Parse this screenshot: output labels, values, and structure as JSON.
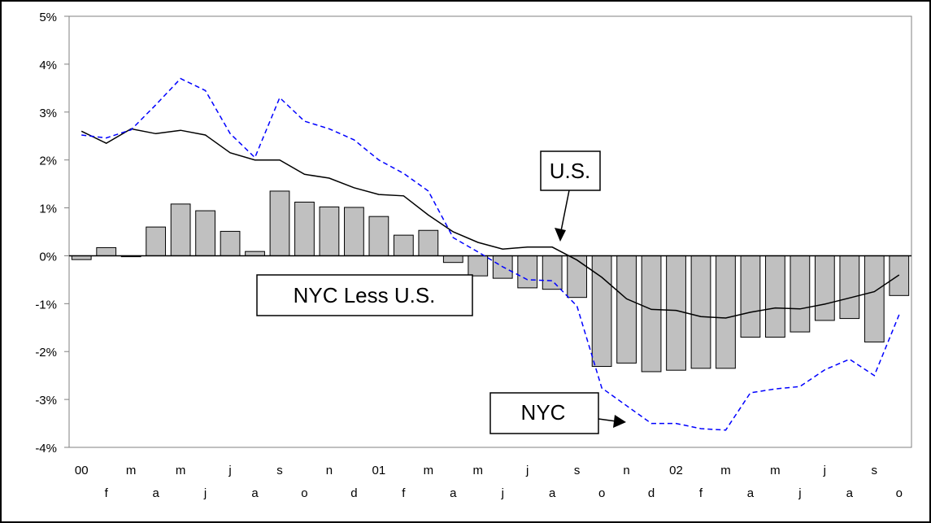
{
  "chart_data": {
    "type": "bar+line",
    "title": "",
    "xlabel": "",
    "ylabel": "",
    "ylim": [
      -4,
      5
    ],
    "y_ticks": [
      "5%",
      "4%",
      "3%",
      "2%",
      "1%",
      "0%",
      "-1%",
      "-2%",
      "-3%",
      "-4%"
    ],
    "x_tick_labels_top": [
      "00",
      "m",
      "m",
      "j",
      "s",
      "n",
      "01",
      "m",
      "m",
      "j",
      "s",
      "n",
      "02",
      "m",
      "m",
      "j",
      "s"
    ],
    "x_tick_labels_bottom": [
      "f",
      "a",
      "j",
      "a",
      "o",
      "d",
      "f",
      "a",
      "j",
      "a",
      "o",
      "d",
      "f",
      "a",
      "j",
      "a",
      "o"
    ],
    "series": [
      {
        "name": "NYC Less U.S.",
        "kind": "bar",
        "color": "#c0c0c0",
        "values": [
          -0.08,
          0.17,
          -0.02,
          0.6,
          1.08,
          0.94,
          0.51,
          0.09,
          1.35,
          1.12,
          1.02,
          1.01,
          0.82,
          0.43,
          0.53,
          -0.14,
          -0.42,
          -0.47,
          -0.67,
          -0.7,
          -0.87,
          -2.31,
          -2.24,
          -2.42,
          -2.39,
          -2.35,
          -2.35,
          -1.7,
          -1.7,
          -1.59,
          -1.35,
          -1.31,
          -1.8,
          -0.83
        ]
      },
      {
        "name": "U.S.",
        "kind": "line",
        "style": "solid",
        "color": "#000000",
        "values": [
          2.6,
          2.35,
          2.65,
          2.55,
          2.62,
          2.52,
          2.15,
          2.0,
          2.0,
          1.7,
          1.62,
          1.42,
          1.28,
          1.25,
          0.85,
          0.5,
          0.28,
          0.14,
          0.18,
          0.18,
          -0.09,
          -0.45,
          -0.9,
          -1.12,
          -1.14,
          -1.27,
          -1.3,
          -1.18,
          -1.09,
          -1.11,
          -1.01,
          -0.88,
          -0.75,
          -0.4
        ]
      },
      {
        "name": "NYC",
        "kind": "line",
        "style": "dashed",
        "color": "#0000ff",
        "values": [
          2.52,
          2.46,
          2.63,
          3.15,
          3.7,
          3.45,
          2.55,
          2.05,
          3.3,
          2.81,
          2.65,
          2.42,
          2.0,
          1.72,
          1.35,
          0.38,
          0.08,
          -0.23,
          -0.5,
          -0.52,
          -1.05,
          -2.76,
          -3.13,
          -3.5,
          -3.5,
          -3.61,
          -3.64,
          -2.86,
          -2.78,
          -2.73,
          -2.38,
          -2.16,
          -2.5,
          -1.23
        ]
      }
    ],
    "grid": false,
    "legend": "none"
  },
  "callouts": {
    "us": "U.S.",
    "nyc_less_us": "NYC Less U.S.",
    "nyc": "NYC"
  }
}
